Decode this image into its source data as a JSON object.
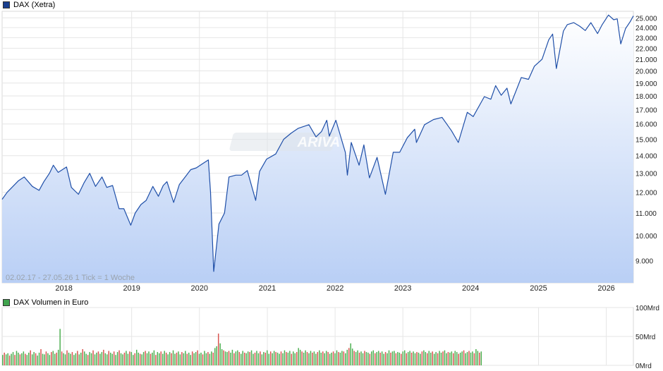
{
  "legend_top": {
    "label": "DAX (Xetra)",
    "color": "#1a3f8f"
  },
  "legend_bottom": {
    "label": "DAX Volumen in Euro",
    "color": "#3fa34d"
  },
  "watermark": "ARIVA",
  "range_note": "02.02.17 - 27.05.26    1 Tick = 1 Woche",
  "colors": {
    "line": "#1f4fa8",
    "fill_top": "#ffffff",
    "fill_bottom": "#b9cff5",
    "grid": "#e6e6e6",
    "vol_green": "#4caf50",
    "vol_red": "#d9534f"
  },
  "chart_data": [
    {
      "type": "area",
      "title": "DAX (Xetra)",
      "x_range": [
        "2017-02-02",
        "2026-05-27"
      ],
      "x_ticks": [
        "2018",
        "2019",
        "2020",
        "2021",
        "2022",
        "2023",
        "2024",
        "2025",
        "2026"
      ],
      "y_ticks": [
        "9.000",
        "10.000",
        "11.000",
        "12.000",
        "13.000",
        "14.000",
        "15.000",
        "16.000",
        "17.000",
        "18.000",
        "19.000",
        "20.000",
        "21.000",
        "22.000",
        "23.000",
        "24.000",
        "25.000"
      ],
      "ylim": [
        8200,
        25700
      ],
      "y_scale": "log",
      "grid": true,
      "series": [
        {
          "points": [
            [
              "2017-02-02",
              11650
            ],
            [
              "2017-03-01",
              12000
            ],
            [
              "2017-04-01",
              12300
            ],
            [
              "2017-05-01",
              12600
            ],
            [
              "2017-06-01",
              12800
            ],
            [
              "2017-07-15",
              12300
            ],
            [
              "2017-08-20",
              12100
            ],
            [
              "2017-09-15",
              12550
            ],
            [
              "2017-10-15",
              13000
            ],
            [
              "2017-11-05",
              13450
            ],
            [
              "2017-12-01",
              13050
            ],
            [
              "2018-01-15",
              13350
            ],
            [
              "2018-02-10",
              12250
            ],
            [
              "2018-03-20",
              11900
            ],
            [
              "2018-04-20",
              12500
            ],
            [
              "2018-05-20",
              13000
            ],
            [
              "2018-06-20",
              12300
            ],
            [
              "2018-07-25",
              12800
            ],
            [
              "2018-08-20",
              12250
            ],
            [
              "2018-09-20",
              12350
            ],
            [
              "2018-10-25",
              11200
            ],
            [
              "2018-11-20",
              11200
            ],
            [
              "2018-12-27",
              10450
            ],
            [
              "2019-01-20",
              11000
            ],
            [
              "2019-02-20",
              11400
            ],
            [
              "2019-03-20",
              11600
            ],
            [
              "2019-04-25",
              12300
            ],
            [
              "2019-05-25",
              11800
            ],
            [
              "2019-06-20",
              12350
            ],
            [
              "2019-07-10",
              12550
            ],
            [
              "2019-08-15",
              11500
            ],
            [
              "2019-09-15",
              12400
            ],
            [
              "2019-10-20",
              12850
            ],
            [
              "2019-11-15",
              13200
            ],
            [
              "2019-12-15",
              13300
            ],
            [
              "2020-01-20",
              13550
            ],
            [
              "2020-02-18",
              13750
            ],
            [
              "2020-03-01",
              12000
            ],
            [
              "2020-03-18",
              8600
            ],
            [
              "2020-04-15",
              10500
            ],
            [
              "2020-05-15",
              11000
            ],
            [
              "2020-06-08",
              12800
            ],
            [
              "2020-07-15",
              12900
            ],
            [
              "2020-08-15",
              12900
            ],
            [
              "2020-09-15",
              13150
            ],
            [
              "2020-10-30",
              11600
            ],
            [
              "2020-11-20",
              13100
            ],
            [
              "2020-12-28",
              13800
            ],
            [
              "2021-02-15",
              14100
            ],
            [
              "2021-03-30",
              15000
            ],
            [
              "2021-05-10",
              15400
            ],
            [
              "2021-06-15",
              15700
            ],
            [
              "2021-08-13",
              15950
            ],
            [
              "2021-09-20",
              15150
            ],
            [
              "2021-10-20",
              15500
            ],
            [
              "2021-11-17",
              16250
            ],
            [
              "2021-12-01",
              15200
            ],
            [
              "2022-01-05",
              16250
            ],
            [
              "2022-02-25",
              14200
            ],
            [
              "2022-03-08",
              12900
            ],
            [
              "2022-03-29",
              14800
            ],
            [
              "2022-05-10",
              13450
            ],
            [
              "2022-06-05",
              14650
            ],
            [
              "2022-07-05",
              12750
            ],
            [
              "2022-08-15",
              13900
            ],
            [
              "2022-09-29",
              11900
            ],
            [
              "2022-11-10",
              14200
            ],
            [
              "2022-12-15",
              14200
            ],
            [
              "2023-01-25",
              15100
            ],
            [
              "2023-03-06",
              15650
            ],
            [
              "2023-03-15",
              14800
            ],
            [
              "2023-04-28",
              15950
            ],
            [
              "2023-06-15",
              16300
            ],
            [
              "2023-07-31",
              16450
            ],
            [
              "2023-09-20",
              15550
            ],
            [
              "2023-10-27",
              14800
            ],
            [
              "2023-12-14",
              16800
            ],
            [
              "2024-01-15",
              16500
            ],
            [
              "2024-03-15",
              17950
            ],
            [
              "2024-04-19",
              17750
            ],
            [
              "2024-05-15",
              18800
            ],
            [
              "2024-06-14",
              18050
            ],
            [
              "2024-07-15",
              18600
            ],
            [
              "2024-08-05",
              17400
            ],
            [
              "2024-09-30",
              19450
            ],
            [
              "2024-11-08",
              19300
            ],
            [
              "2024-12-10",
              20400
            ],
            [
              "2025-01-20",
              21000
            ],
            [
              "2025-02-25",
              22800
            ],
            [
              "2025-03-18",
              23350
            ],
            [
              "2025-04-07",
              20200
            ],
            [
              "2025-05-15",
              23650
            ],
            [
              "2025-06-05",
              24300
            ],
            [
              "2025-07-10",
              24500
            ],
            [
              "2025-08-10",
              24150
            ],
            [
              "2025-09-10",
              23700
            ],
            [
              "2025-10-10",
              24500
            ],
            [
              "2025-11-15",
              23400
            ],
            [
              "2025-12-10",
              24300
            ],
            [
              "2026-01-13",
              25300
            ],
            [
              "2026-02-10",
              24800
            ],
            [
              "2026-03-01",
              24900
            ],
            [
              "2026-03-20",
              22400
            ],
            [
              "2026-04-15",
              23900
            ],
            [
              "2026-05-10",
              24600
            ],
            [
              "2026-05-27",
              25200
            ]
          ]
        }
      ]
    },
    {
      "type": "bar",
      "title": "DAX Volumen in Euro",
      "y_ticks": [
        "0Mrd",
        "50Mrd",
        "100Mrd"
      ],
      "ylim": [
        0,
        100
      ],
      "unit": "Mrd",
      "grid": true,
      "notes": [
        "weekly volume bars",
        "peaks near early 2018 and March 2020"
      ],
      "values": [
        18,
        22,
        19,
        21,
        17,
        20,
        23,
        18,
        25,
        22,
        19,
        21,
        24,
        20,
        18,
        22,
        26,
        19,
        23,
        21,
        17,
        22,
        28,
        20,
        19,
        24,
        21,
        18,
        23,
        25,
        20,
        22,
        27,
        63,
        24,
        21,
        19,
        26,
        22,
        20,
        23,
        18,
        21,
        25,
        19,
        22,
        28,
        24,
        20,
        18,
        23,
        21,
        26,
        19,
        22,
        24,
        20,
        23,
        27,
        21,
        19,
        25,
        22,
        20,
        24,
        18,
        23,
        26,
        21,
        19,
        22,
        25,
        20,
        24,
        23,
        18,
        21,
        27,
        22,
        20,
        19,
        23,
        25,
        21,
        24,
        20,
        22,
        26,
        18,
        23,
        21,
        24,
        20,
        25,
        22,
        19,
        23,
        21,
        26,
        20,
        22,
        24,
        19,
        23,
        21,
        25,
        20,
        22,
        18,
        24,
        21,
        23,
        26,
        20,
        22,
        19,
        25,
        21,
        23,
        20,
        24,
        22,
        30,
        33,
        55,
        38,
        28,
        26,
        24,
        23,
        25,
        22,
        27,
        21,
        24,
        26,
        23,
        20,
        25,
        22,
        21,
        24,
        23,
        26,
        20,
        22,
        25,
        21,
        24,
        19,
        23,
        22,
        26,
        20,
        24,
        21,
        25,
        23,
        22,
        20,
        24,
        21,
        26,
        23,
        22,
        25,
        20,
        24,
        21,
        23,
        30,
        27,
        24,
        22,
        26,
        23,
        21,
        25,
        22,
        24,
        20,
        23,
        26,
        22,
        24,
        21,
        25,
        23,
        20,
        22,
        24,
        21,
        26,
        23,
        22,
        25,
        24,
        21,
        27,
        30,
        38,
        29,
        25,
        23,
        26,
        22,
        24,
        21,
        25,
        23,
        22,
        20,
        24,
        26,
        21,
        23,
        25,
        22,
        24,
        20,
        23,
        21,
        26,
        22,
        24,
        25,
        21,
        23,
        22,
        20,
        24,
        26,
        21,
        23,
        25,
        22,
        24,
        21,
        23,
        22,
        20,
        24,
        26,
        23,
        21,
        25,
        22,
        24,
        20,
        23,
        21,
        25,
        22,
        24,
        26,
        21,
        23,
        22,
        24,
        21,
        25,
        23,
        20,
        22,
        24,
        26,
        21,
        23,
        25,
        22,
        24,
        21,
        28,
        25,
        22,
        24
      ]
    }
  ]
}
